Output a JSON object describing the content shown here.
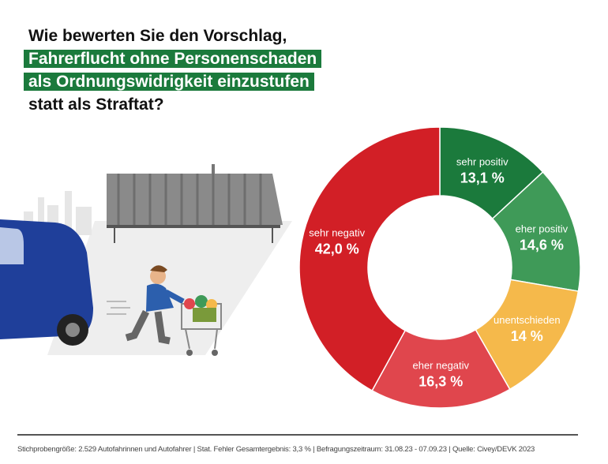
{
  "title": {
    "line1": "Wie bewerten Sie den Vorschlag,",
    "line2": "Fahrerflucht ohne Personenschaden",
    "line3": "als Ordnungswidrigkeit einzustufen",
    "line4": "statt als Straftat?"
  },
  "footer": "Stichprobengröße: 2.529 Autofahrinnen und Autofahrer  |  Stat. Fehler Gesamtergebnis: 3,3 %  |  Befragungszeitraum: 31.08.23 - 07.09.23  |  Quelle: Civey/DEVK 2023",
  "colors": {
    "highlight": "#1b7a3c"
  },
  "chart_data": {
    "type": "pie",
    "donut": true,
    "start": "top, clockwise",
    "slices": [
      {
        "label": "sehr positiv",
        "value": 13.1,
        "display": "13,1 %",
        "color": "#1b7a3c"
      },
      {
        "label": "eher positiv",
        "value": 14.6,
        "display": "14,6 %",
        "color": "#3f9a58"
      },
      {
        "label": "unentschieden",
        "value": 14.0,
        "display": "14 %",
        "color": "#f5b94b"
      },
      {
        "label": "eher negativ",
        "value": 16.3,
        "display": "16,3 %",
        "color": "#e0464d"
      },
      {
        "label": "sehr negativ",
        "value": 42.0,
        "display": "42,0 %",
        "color": "#d21f26"
      }
    ]
  }
}
